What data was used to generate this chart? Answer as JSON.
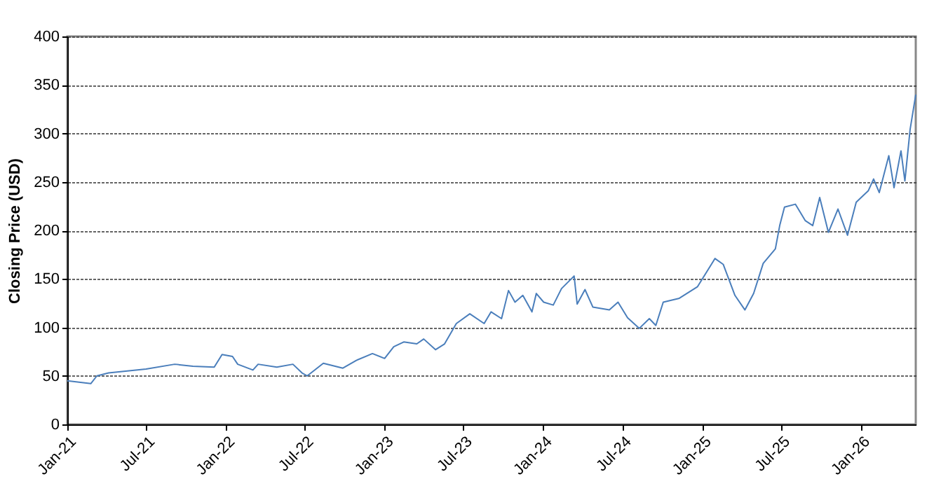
{
  "chart_data": {
    "type": "line",
    "ylabel": "Closing Price (USD)",
    "x": [
      "2021-01-01",
      "2021-02-24",
      "2021-03-10",
      "2021-04-06",
      "2021-07-01",
      "2021-09-05",
      "2021-10-17",
      "2021-12-05",
      "2021-12-23",
      "2022-01-16",
      "2022-01-28",
      "2022-03-04",
      "2022-03-16",
      "2022-04-28",
      "2022-06-04",
      "2022-06-25",
      "2022-07-07",
      "2022-08-13",
      "2022-09-27",
      "2022-10-28",
      "2022-12-04",
      "2023-01-01",
      "2023-01-22",
      "2023-02-14",
      "2023-03-16",
      "2023-04-01",
      "2023-04-28",
      "2023-05-19",
      "2023-06-15",
      "2023-07-16",
      "2023-08-18",
      "2023-09-03",
      "2023-09-27",
      "2023-10-13",
      "2023-10-28",
      "2023-11-15",
      "2023-12-06",
      "2023-12-16",
      "2024-01-02",
      "2024-01-24",
      "2024-02-12",
      "2024-03-12",
      "2024-03-19",
      "2024-04-06",
      "2024-04-24",
      "2024-06-01",
      "2024-06-21",
      "2024-07-13",
      "2024-08-09",
      "2024-09-01",
      "2024-09-16",
      "2024-10-03",
      "2024-11-09",
      "2024-12-21",
      "2025-01-30",
      "2025-02-18",
      "2025-03-17",
      "2025-04-09",
      "2025-04-29",
      "2025-05-21",
      "2025-06-18",
      "2025-06-28",
      "2025-07-09",
      "2025-08-03",
      "2025-08-26",
      "2025-09-12",
      "2025-09-28",
      "2025-10-18",
      "2025-11-09",
      "2025-12-01",
      "2025-12-21",
      "2026-01-18",
      "2026-01-30",
      "2026-02-12",
      "2026-03-06",
      "2026-03-18",
      "2026-04-03",
      "2026-04-12",
      "2026-04-24",
      "2026-05-07"
    ],
    "series": [
      {
        "color": "#4a7ebb",
        "values": [
          45,
          42,
          50,
          53,
          57,
          62,
          60,
          59,
          72,
          70,
          62,
          56,
          62,
          59,
          62,
          53,
          50,
          63,
          58,
          66,
          73,
          68,
          80,
          85,
          83,
          88,
          77,
          83,
          104,
          114,
          104,
          116,
          109,
          138,
          126,
          133,
          116,
          135,
          126,
          123,
          140,
          153,
          124,
          139,
          121,
          118,
          126,
          110,
          99,
          109,
          102,
          126,
          130,
          142,
          171,
          165,
          133,
          118,
          135,
          166,
          181,
          205,
          224,
          227,
          210,
          205,
          234,
          198,
          222,
          195,
          229,
          241,
          253,
          239,
          277,
          244,
          282,
          251,
          304,
          340
        ]
      }
    ],
    "xlim": [
      "2021-01-01",
      "2026-05-07"
    ],
    "xticks": [
      {
        "value": "2021-01-01",
        "label": "Jan-21"
      },
      {
        "value": "2021-07-01",
        "label": "Jul-21"
      },
      {
        "value": "2022-01-01",
        "label": "Jan-22"
      },
      {
        "value": "2022-07-01",
        "label": "Jul-22"
      },
      {
        "value": "2023-01-01",
        "label": "Jan-23"
      },
      {
        "value": "2023-07-01",
        "label": "Jul-23"
      },
      {
        "value": "2024-01-01",
        "label": "Jan-24"
      },
      {
        "value": "2024-07-01",
        "label": "Jul-24"
      },
      {
        "value": "2025-01-01",
        "label": "Jan-25"
      },
      {
        "value": "2025-07-01",
        "label": "Jul-25"
      },
      {
        "value": "2026-01-01",
        "label": "Jan-26"
      }
    ],
    "ylim": [
      0,
      400
    ],
    "yticks": [
      0,
      50,
      100,
      150,
      200,
      250,
      300,
      350,
      400
    ],
    "grid": "y",
    "marker": "none",
    "line_style": "solid"
  }
}
